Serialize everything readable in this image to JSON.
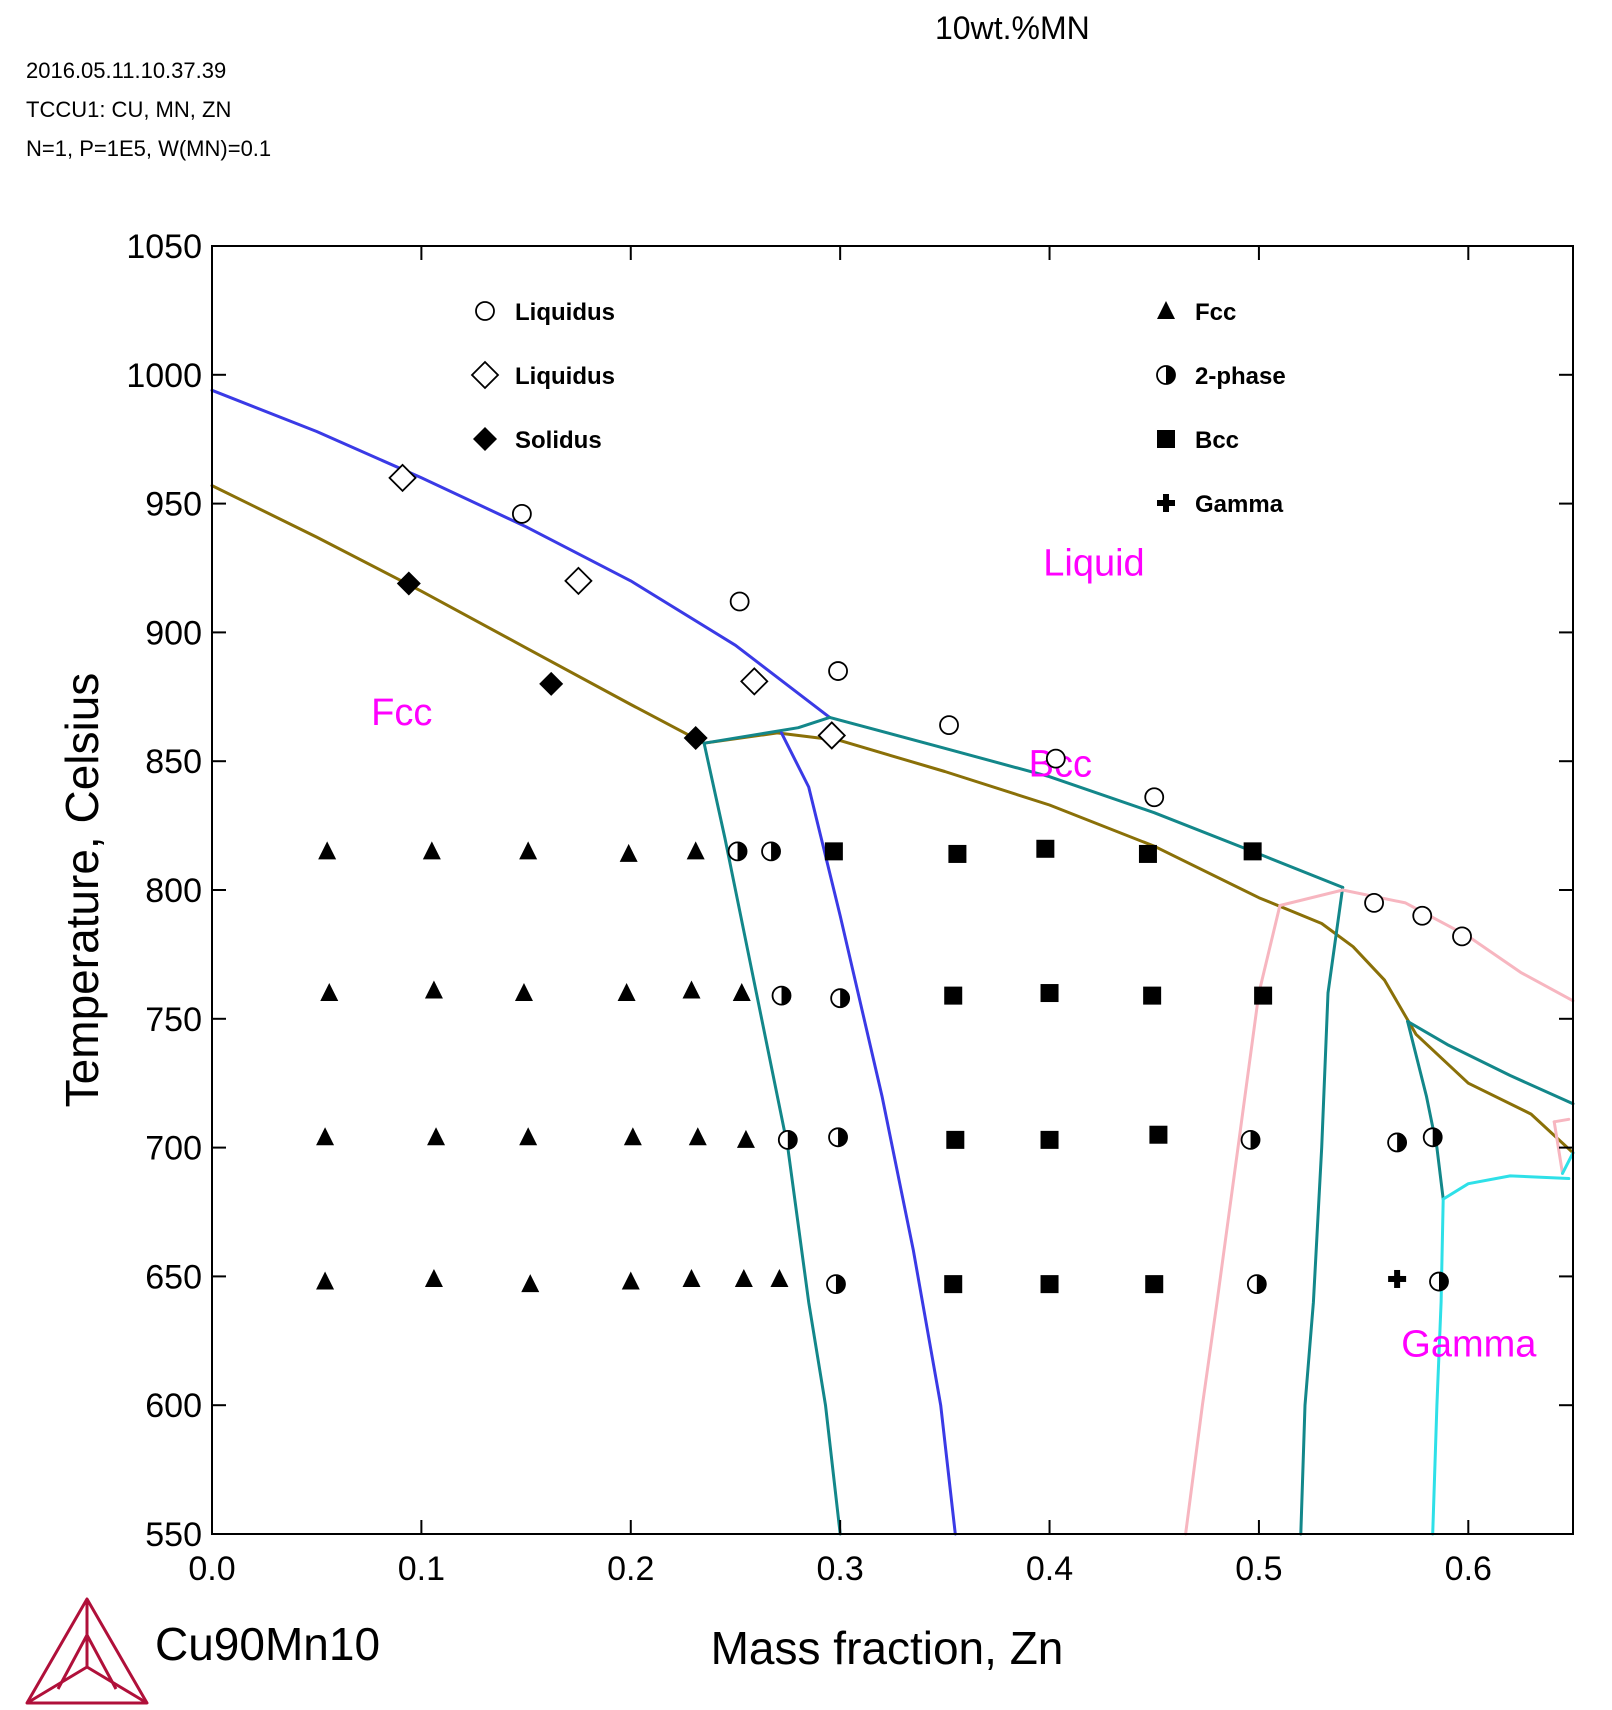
{
  "header": {
    "title": "10wt.%MN",
    "timestamp": "2016.05.11.10.37.39",
    "database": "TCCU1: CU, MN, ZN",
    "conditions": "N=1, P=1E5, W(MN)=0.1"
  },
  "footer": {
    "label": "Cu90Mn10"
  },
  "chart_data": {
    "type": "scatter",
    "title": "10wt.%MN",
    "xlabel": "Mass fraction, Zn",
    "ylabel": "Temperature, Celsius",
    "xlim": [
      0,
      0.65
    ],
    "ylim": [
      550,
      1050
    ],
    "x_ticks": [
      "0.0",
      "0.1",
      "0.2",
      "0.3",
      "0.4",
      "0.5",
      "0.6"
    ],
    "y_ticks": [
      "550",
      "600",
      "650",
      "700",
      "750",
      "800",
      "850",
      "900",
      "950",
      "1000",
      "1050"
    ],
    "grid": false,
    "colors": {
      "liquidus": "#3a3ae6",
      "solidus": "#8a7008",
      "teal": "#13878a",
      "pink": "#f7b6c0",
      "cyan": "#2ee0e8",
      "region_label": "#ff00ff",
      "logo": "#b0103a"
    },
    "region_labels": [
      {
        "text": "Liquid",
        "x": 0.397,
        "y": 922
      },
      {
        "text": "Fcc",
        "x": 0.076,
        "y": 864
      },
      {
        "text": "Bcc",
        "x": 0.39,
        "y": 844
      },
      {
        "text": "Gamma",
        "x": 0.568,
        "y": 619
      }
    ],
    "legend_left": [
      {
        "marker": "circle-open",
        "label": "Liquidus"
      },
      {
        "marker": "diamond-open",
        "label": "Liquidus"
      },
      {
        "marker": "diamond-filled",
        "label": "Solidus"
      }
    ],
    "legend_right": [
      {
        "marker": "triangle",
        "label": "Fcc"
      },
      {
        "marker": "half-circle",
        "label": "2-phase"
      },
      {
        "marker": "square",
        "label": "Bcc"
      },
      {
        "marker": "cross",
        "label": "Gamma"
      }
    ],
    "lines": [
      {
        "color": "liquidus",
        "points": [
          [
            0,
            994
          ],
          [
            0.05,
            978
          ],
          [
            0.1,
            960
          ],
          [
            0.15,
            941
          ],
          [
            0.2,
            920
          ],
          [
            0.25,
            895
          ],
          [
            0.295,
            867
          ]
        ]
      },
      {
        "color": "solidus",
        "points": [
          [
            0,
            957
          ],
          [
            0.05,
            937
          ],
          [
            0.1,
            916
          ],
          [
            0.15,
            894
          ],
          [
            0.2,
            872
          ],
          [
            0.235,
            857
          ],
          [
            0.27,
            861
          ],
          [
            0.3,
            858
          ],
          [
            0.35,
            846
          ],
          [
            0.4,
            833
          ],
          [
            0.45,
            817
          ],
          [
            0.5,
            797
          ],
          [
            0.53,
            787
          ],
          [
            0.545,
            778
          ],
          [
            0.56,
            765
          ],
          [
            0.575,
            744
          ],
          [
            0.6,
            725
          ],
          [
            0.63,
            713
          ],
          [
            0.65,
            698
          ]
        ]
      },
      {
        "color": "teal",
        "points": [
          [
            0.235,
            857
          ],
          [
            0.28,
            863
          ],
          [
            0.295,
            867
          ]
        ]
      },
      {
        "color": "teal",
        "points": [
          [
            0.295,
            867
          ],
          [
            0.35,
            855
          ],
          [
            0.4,
            844
          ],
          [
            0.45,
            830
          ],
          [
            0.5,
            814
          ],
          [
            0.54,
            801
          ]
        ]
      },
      {
        "color": "teal",
        "points": [
          [
            0.235,
            857
          ],
          [
            0.245,
            820
          ],
          [
            0.26,
            760
          ],
          [
            0.275,
            700
          ],
          [
            0.285,
            640
          ],
          [
            0.293,
            600
          ],
          [
            0.3,
            550
          ]
        ]
      },
      {
        "color": "liquidus",
        "points": [
          [
            0.272,
            861
          ],
          [
            0.285,
            840
          ],
          [
            0.3,
            790
          ],
          [
            0.32,
            720
          ],
          [
            0.335,
            660
          ],
          [
            0.348,
            600
          ],
          [
            0.355,
            550
          ]
        ]
      },
      {
        "color": "teal",
        "points": [
          [
            0.54,
            801
          ],
          [
            0.533,
            760
          ],
          [
            0.53,
            700
          ],
          [
            0.526,
            640
          ],
          [
            0.522,
            600
          ],
          [
            0.52,
            550
          ]
        ]
      },
      {
        "color": "teal",
        "points": [
          [
            0.571,
            749
          ],
          [
            0.58,
            720
          ],
          [
            0.585,
            700
          ],
          [
            0.588,
            680
          ]
        ]
      },
      {
        "color": "teal",
        "points": [
          [
            0.571,
            749
          ],
          [
            0.59,
            740
          ],
          [
            0.62,
            728
          ],
          [
            0.65,
            717
          ]
        ]
      },
      {
        "color": "pink",
        "points": [
          [
            0.51,
            794
          ],
          [
            0.54,
            800
          ],
          [
            0.57,
            795
          ],
          [
            0.6,
            782
          ],
          [
            0.625,
            768
          ],
          [
            0.65,
            757
          ]
        ]
      },
      {
        "color": "pink",
        "points": [
          [
            0.51,
            794
          ],
          [
            0.5,
            760
          ],
          [
            0.49,
            700
          ],
          [
            0.48,
            640
          ],
          [
            0.473,
            600
          ],
          [
            0.465,
            550
          ]
        ]
      },
      {
        "color": "pink",
        "points": [
          [
            0.641,
            710
          ],
          [
            0.648,
            711
          ]
        ]
      },
      {
        "color": "pink",
        "points": [
          [
            0.641,
            710
          ],
          [
            0.645,
            690
          ]
        ]
      },
      {
        "color": "cyan",
        "points": [
          [
            0.588,
            680
          ],
          [
            0.6,
            686
          ],
          [
            0.62,
            689
          ],
          [
            0.648,
            688
          ]
        ]
      },
      {
        "color": "cyan",
        "points": [
          [
            0.588,
            680
          ],
          [
            0.587,
            640
          ],
          [
            0.585,
            600
          ],
          [
            0.583,
            550
          ]
        ]
      },
      {
        "color": "cyan",
        "points": [
          [
            0.645,
            690
          ],
          [
            0.65,
            698
          ]
        ]
      }
    ],
    "series": [
      {
        "name": "Liquidus",
        "marker": "circle-open",
        "points": [
          [
            0.148,
            946
          ],
          [
            0.252,
            912
          ],
          [
            0.299,
            885
          ],
          [
            0.352,
            864
          ],
          [
            0.403,
            851
          ],
          [
            0.45,
            836
          ],
          [
            0.555,
            795
          ],
          [
            0.578,
            790
          ],
          [
            0.597,
            782
          ]
        ]
      },
      {
        "name": "Liquidus",
        "marker": "diamond-open",
        "points": [
          [
            0.091,
            960
          ],
          [
            0.175,
            920
          ],
          [
            0.259,
            881
          ],
          [
            0.296,
            860
          ]
        ]
      },
      {
        "name": "Solidus",
        "marker": "diamond-filled",
        "points": [
          [
            0.094,
            919
          ],
          [
            0.162,
            880
          ],
          [
            0.231,
            859
          ]
        ]
      },
      {
        "name": "Fcc",
        "marker": "triangle",
        "points": [
          [
            0.055,
            815
          ],
          [
            0.105,
            815
          ],
          [
            0.151,
            815
          ],
          [
            0.199,
            814
          ],
          [
            0.231,
            815
          ],
          [
            0.056,
            760
          ],
          [
            0.106,
            761
          ],
          [
            0.149,
            760
          ],
          [
            0.198,
            760
          ],
          [
            0.229,
            761
          ],
          [
            0.253,
            760
          ],
          [
            0.054,
            704
          ],
          [
            0.107,
            704
          ],
          [
            0.151,
            704
          ],
          [
            0.201,
            704
          ],
          [
            0.232,
            704
          ],
          [
            0.255,
            703
          ],
          [
            0.054,
            648
          ],
          [
            0.106,
            649
          ],
          [
            0.152,
            647
          ],
          [
            0.2,
            648
          ],
          [
            0.229,
            649
          ],
          [
            0.254,
            649
          ],
          [
            0.271,
            649
          ]
        ]
      },
      {
        "name": "2-phase",
        "marker": "half-circle",
        "points": [
          [
            0.251,
            815
          ],
          [
            0.267,
            815
          ],
          [
            0.272,
            759
          ],
          [
            0.3,
            758
          ],
          [
            0.275,
            703
          ],
          [
            0.299,
            704
          ],
          [
            0.496,
            703
          ],
          [
            0.566,
            702
          ],
          [
            0.583,
            704
          ],
          [
            0.298,
            647
          ],
          [
            0.499,
            647
          ],
          [
            0.586,
            648
          ]
        ]
      },
      {
        "name": "Bcc",
        "marker": "square",
        "points": [
          [
            0.297,
            815
          ],
          [
            0.356,
            814
          ],
          [
            0.398,
            816
          ],
          [
            0.447,
            814
          ],
          [
            0.497,
            815
          ],
          [
            0.354,
            759
          ],
          [
            0.4,
            760
          ],
          [
            0.449,
            759
          ],
          [
            0.502,
            759
          ],
          [
            0.355,
            703
          ],
          [
            0.4,
            703
          ],
          [
            0.452,
            705
          ],
          [
            0.354,
            647
          ],
          [
            0.4,
            647
          ],
          [
            0.45,
            647
          ]
        ]
      },
      {
        "name": "Gamma",
        "marker": "cross",
        "points": [
          [
            0.566,
            649
          ]
        ]
      }
    ]
  }
}
